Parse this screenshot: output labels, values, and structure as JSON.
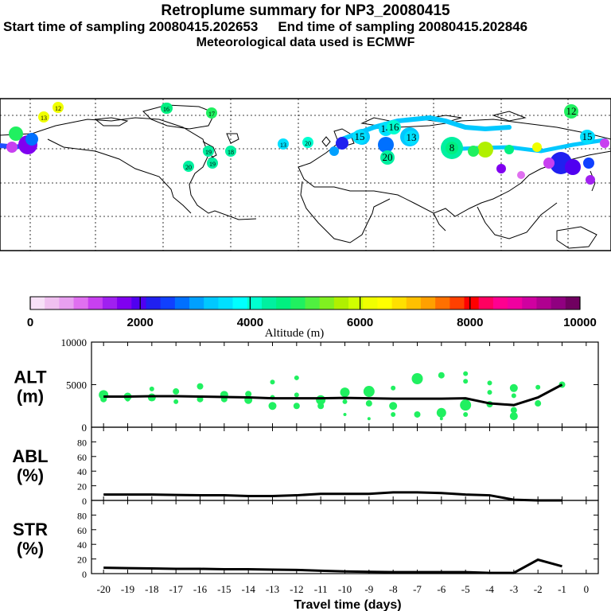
{
  "header": {
    "title": "Retroplume summary for NP3_20080415",
    "start_label": "Start time of sampling 20080415.202653",
    "end_label": "End time of sampling 20080415.202846",
    "met_label": "Meteorological data used is ECMWF"
  },
  "colorbar": {
    "ticks": [
      "0",
      "2000",
      "4000",
      "6000",
      "8000",
      "10000"
    ],
    "tick_values": [
      0,
      2000,
      4000,
      6000,
      8000,
      10000
    ],
    "label": "Altitude (m)",
    "colors": [
      "#f7e0f7",
      "#f0c0f0",
      "#e8a0f0",
      "#e070f0",
      "#c840f0",
      "#a020f0",
      "#8000f0",
      "#5000f0",
      "#2020f0",
      "#1040ff",
      "#0070ff",
      "#00a0ff",
      "#00c8ff",
      "#00e0ff",
      "#00ffff",
      "#00ffd0",
      "#00f0a0",
      "#00f080",
      "#20f060",
      "#50f040",
      "#80f020",
      "#b0f000",
      "#d0ff00",
      "#f0ff00",
      "#ffff00",
      "#ffe000",
      "#ffc000",
      "#ffa000",
      "#ff7000",
      "#ff4000",
      "#ff0000",
      "#ff0060",
      "#ff0090",
      "#f000a0",
      "#d000a0",
      "#b00090",
      "#900080",
      "#700060"
    ]
  },
  "map_labels": [
    {
      "t": "12",
      "lon": -135,
      "lat": 82,
      "c": "#f0ff00"
    },
    {
      "t": "13",
      "lon": -148,
      "lat": 78,
      "c": "#f0ff00"
    },
    {
      "t": "16",
      "lon": -55,
      "lat": 82,
      "c": "#00f080"
    },
    {
      "t": "17",
      "lon": -33,
      "lat": 78,
      "c": "#20f060"
    },
    {
      "t": "19",
      "lon": -44,
      "lat": 59,
      "c": "#00f0a0"
    },
    {
      "t": "18",
      "lon": -20,
      "lat": 62,
      "c": "#00f0a0"
    },
    {
      "t": "19",
      "lon": -54,
      "lat": 50,
      "c": "#00f0a0"
    },
    {
      "t": "20",
      "lon": -61,
      "lat": 45,
      "c": "#00f0a0"
    },
    {
      "t": "13",
      "lon": 5,
      "lat": 67,
      "c": "#00e0ff"
    },
    {
      "t": "20",
      "lon": 21,
      "lat": 68,
      "c": "#00ffd0"
    },
    {
      "t": "15",
      "lon": 63,
      "lat": 70,
      "c": "#00e0ff"
    },
    {
      "t": "14",
      "lon": 75,
      "lat": 71,
      "c": "#00e0ff"
    },
    {
      "t": "13",
      "lon": 98,
      "lat": 70,
      "c": "#00e0ff"
    },
    {
      "t": "16",
      "lon": 80,
      "lat": 74,
      "c": "#00ffd0"
    },
    {
      "t": "20",
      "lon": 82,
      "lat": 57,
      "c": "#00f0a0"
    },
    {
      "t": "8",
      "lon": 126,
      "lat": 64,
      "c": "#00f080"
    },
    {
      "t": "12",
      "lon": 178,
      "lat": 80,
      "c": "#20f060"
    },
    {
      "t": "15",
      "lon": 181,
      "lat": 70,
      "c": "#00e0ff"
    }
  ],
  "altitude_panel": {
    "label_line1": "ALT",
    "label_line2": "(m)",
    "ylim": [
      0,
      10000
    ],
    "yticks": [
      "0",
      "5000",
      "10000"
    ],
    "median": [
      [
        -20,
        3600
      ],
      [
        -19,
        3600
      ],
      [
        -18,
        3650
      ],
      [
        -17,
        3650
      ],
      [
        -16,
        3600
      ],
      [
        -15,
        3550
      ],
      [
        -14,
        3500
      ],
      [
        -13,
        3400
      ],
      [
        -12,
        3400
      ],
      [
        -11,
        3400
      ],
      [
        -10,
        3450
      ],
      [
        -9,
        3400
      ],
      [
        -8,
        3350
      ],
      [
        -7,
        3350
      ],
      [
        -6,
        3350
      ],
      [
        -5,
        3400
      ],
      [
        -4,
        2800
      ],
      [
        -3,
        2600
      ],
      [
        -2,
        3500
      ],
      [
        -1,
        5000
      ]
    ],
    "points": [
      [
        -20,
        3800,
        6
      ],
      [
        -20,
        3300,
        4
      ],
      [
        -19,
        3600,
        5
      ],
      [
        -19,
        3300,
        3
      ],
      [
        -18,
        4500,
        3
      ],
      [
        -18,
        3500,
        5
      ],
      [
        -17,
        4200,
        4
      ],
      [
        -17,
        3000,
        3
      ],
      [
        -16,
        4800,
        4
      ],
      [
        -16,
        3300,
        4
      ],
      [
        -15,
        3800,
        5
      ],
      [
        -15,
        3300,
        4
      ],
      [
        -14,
        3900,
        4
      ],
      [
        -14,
        3200,
        5
      ],
      [
        -13,
        5300,
        3
      ],
      [
        -13,
        2500,
        5
      ],
      [
        -13,
        3500,
        3
      ],
      [
        -12,
        5800,
        3
      ],
      [
        -12,
        3800,
        3
      ],
      [
        -12,
        2500,
        4
      ],
      [
        -11,
        3200,
        6
      ],
      [
        -11,
        2500,
        4
      ],
      [
        -10,
        4100,
        6
      ],
      [
        -10,
        3000,
        3
      ],
      [
        -10,
        1500,
        2
      ],
      [
        -9,
        4200,
        7
      ],
      [
        -9,
        2800,
        4
      ],
      [
        -9,
        1000,
        2
      ],
      [
        -8,
        4600,
        3
      ],
      [
        -8,
        2500,
        5
      ],
      [
        -8,
        1500,
        3
      ],
      [
        -7,
        5700,
        7
      ],
      [
        -7,
        1500,
        4
      ],
      [
        -6,
        6100,
        4
      ],
      [
        -6,
        1700,
        6
      ],
      [
        -6,
        1000,
        2
      ],
      [
        -5,
        6300,
        3
      ],
      [
        -5,
        5400,
        3
      ],
      [
        -5,
        2600,
        7
      ],
      [
        -5,
        1500,
        3
      ],
      [
        -4,
        5200,
        3
      ],
      [
        -4,
        4100,
        3
      ],
      [
        -4,
        2700,
        4
      ],
      [
        -3,
        4600,
        5
      ],
      [
        -3,
        3700,
        3
      ],
      [
        -3,
        2000,
        4
      ],
      [
        -3,
        1300,
        5
      ],
      [
        -2,
        4700,
        3
      ],
      [
        -2,
        2800,
        4
      ],
      [
        -1,
        5000,
        4
      ]
    ]
  },
  "abl_panel": {
    "label_line1": "ABL",
    "label_line2": "(%)",
    "ylim": [
      0,
      100
    ],
    "yticks": [
      "0",
      "20",
      "40",
      "60",
      "80"
    ],
    "series": [
      [
        -20,
        8
      ],
      [
        -19,
        8
      ],
      [
        -18,
        8
      ],
      [
        -17,
        7.5
      ],
      [
        -16,
        7
      ],
      [
        -15,
        7
      ],
      [
        -14,
        6
      ],
      [
        -13,
        6
      ],
      [
        -12,
        7
      ],
      [
        -11,
        9
      ],
      [
        -10,
        9
      ],
      [
        -9,
        9
      ],
      [
        -8,
        11
      ],
      [
        -7,
        11
      ],
      [
        -6,
        10
      ],
      [
        -5,
        8
      ],
      [
        -4,
        7
      ],
      [
        -3,
        1
      ],
      [
        -2,
        0
      ],
      [
        -1,
        0
      ]
    ]
  },
  "str_panel": {
    "label_line1": "STR",
    "label_line2": "(%)",
    "ylim": [
      0,
      100
    ],
    "yticks": [
      "0",
      "20",
      "40",
      "60",
      "80"
    ],
    "series": [
      [
        -20,
        8
      ],
      [
        -19,
        7.5
      ],
      [
        -18,
        7
      ],
      [
        -17,
        6.5
      ],
      [
        -16,
        6.5
      ],
      [
        -15,
        6
      ],
      [
        -14,
        6
      ],
      [
        -13,
        5.5
      ],
      [
        -12,
        5
      ],
      [
        -11,
        4
      ],
      [
        -10,
        3
      ],
      [
        -9,
        2.5
      ],
      [
        -8,
        2
      ],
      [
        -7,
        2
      ],
      [
        -6,
        2
      ],
      [
        -5,
        2
      ],
      [
        -4,
        1
      ],
      [
        -3,
        1
      ],
      [
        -2,
        19
      ],
      [
        -1,
        10
      ]
    ]
  },
  "x_axis": {
    "label": "Travel time (days)",
    "ticks": [
      "-20",
      "-19",
      "-18",
      "-17",
      "-16",
      "-15",
      "-14",
      "-13",
      "-12",
      "-11",
      "-10",
      "-9",
      "-8",
      "-7",
      "-6",
      "-5",
      "-4",
      "-3",
      "-2",
      "-1",
      "0"
    ],
    "tick_values": [
      -20,
      -19,
      -18,
      -17,
      -16,
      -15,
      -14,
      -13,
      -12,
      -11,
      -10,
      -9,
      -8,
      -7,
      -6,
      -5,
      -4,
      -3,
      -2,
      -1,
      0
    ]
  },
  "chart_data": [
    {
      "type": "scatter",
      "title": "ALT (m)",
      "ylabel": "ALT (m)",
      "xlabel": "Travel time (days)",
      "ylim": [
        0,
        10000
      ],
      "xlim": [
        -20,
        0
      ]
    },
    {
      "type": "line",
      "title": "ABL (%)",
      "ylabel": "ABL (%)",
      "xlabel": "Travel time (days)",
      "ylim": [
        0,
        100
      ],
      "xlim": [
        -20,
        0
      ]
    },
    {
      "type": "line",
      "title": "STR (%)",
      "ylabel": "STR (%)",
      "xlabel": "Travel time (days)",
      "ylim": [
        0,
        100
      ],
      "xlim": [
        -20,
        0
      ]
    }
  ]
}
